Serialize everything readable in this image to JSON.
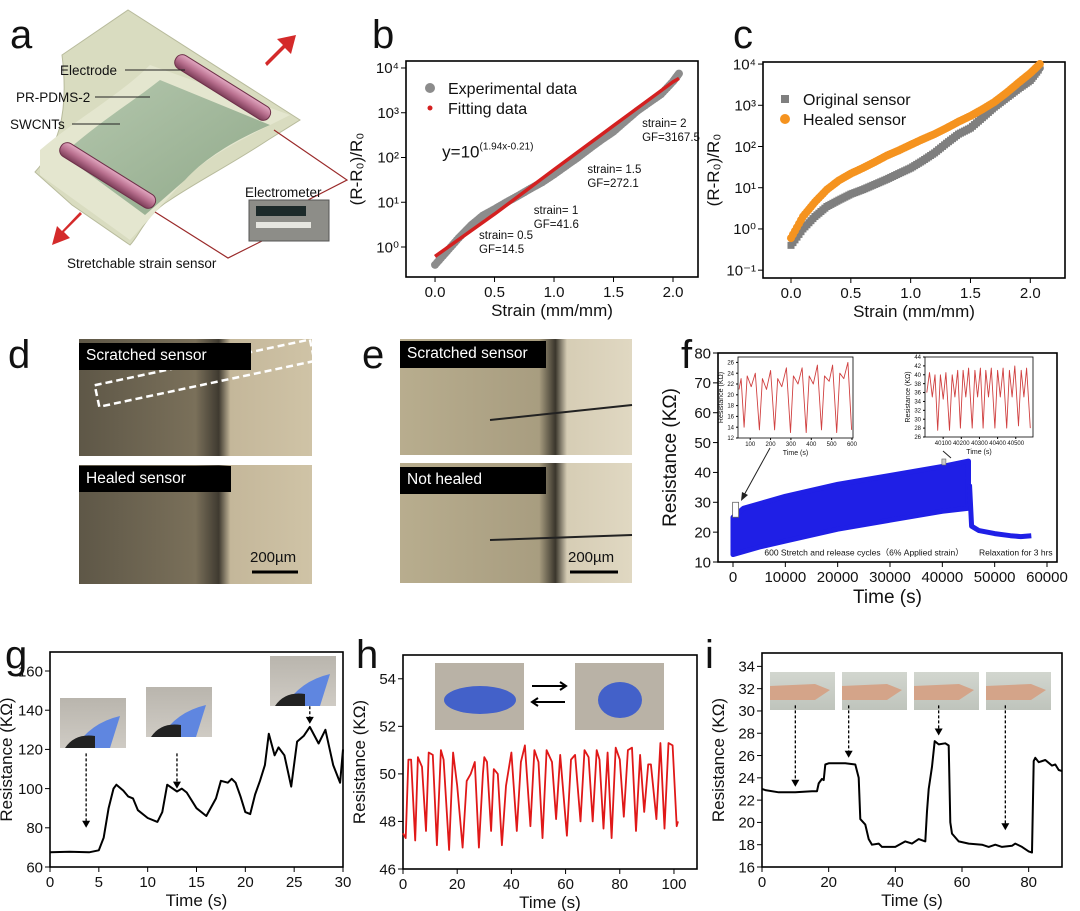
{
  "panel_letters": [
    "a",
    "b",
    "c",
    "d",
    "e",
    "f",
    "g",
    "h",
    "i"
  ],
  "panel_a": {
    "labels": {
      "electrode": "Electrode",
      "pr_pdms": "PR-PDMS-2",
      "swcnts": "SWCNTs",
      "electrometer": "Electrometer",
      "sensor": "Stretchable strain sensor"
    },
    "colors": {
      "substrate": "#d9dcc0",
      "film": "#9fb59a",
      "electrode": "#b9708f",
      "arrow": "#d42a2a",
      "wire": "#9a2a2a"
    }
  },
  "panel_d": {
    "top_label": "Scratched sensor",
    "bottom_label": "Healed sensor",
    "scale_bar": "200µm"
  },
  "panel_e": {
    "top_label": "Scratched sensor",
    "bottom_label": "Not healed",
    "scale_bar": "200µm"
  },
  "chart_data": [
    {
      "id": "b",
      "type": "scatter",
      "xlabel": "Strain (mm/mm)",
      "ylabel": "(R-R₀)/R₀",
      "xlim": [
        -0.244,
        2.21
      ],
      "ylim": [
        -0.67,
        4.156
      ],
      "yscale": "log",
      "xticks": [
        0.0,
        0.5,
        1.0,
        1.5,
        2.0
      ],
      "xtick_labels": [
        "0.0",
        "0.5",
        "1.0",
        "1.5",
        "2.0"
      ],
      "yticks": [
        0,
        1,
        2,
        3,
        4
      ],
      "ytick_labels": [
        "10⁰",
        "10¹",
        "10²",
        "10³",
        "10⁴"
      ],
      "legend_position": "top-left",
      "series": [
        {
          "name": "Experimental data",
          "color": "#8c8c8c",
          "marker": "circle",
          "x": [
            0,
            0.1,
            0.2,
            0.3,
            0.4,
            0.5,
            0.6,
            0.7,
            0.8,
            0.9,
            1.0,
            1.1,
            1.2,
            1.3,
            1.4,
            1.5,
            1.6,
            1.7,
            1.8,
            1.9,
            2.0,
            2.05
          ],
          "y": [
            0.4,
            0.8,
            1.6,
            3,
            5,
            7,
            10,
            14,
            20,
            28,
            42,
            65,
            100,
            160,
            250,
            380,
            650,
            1100,
            1700,
            2600,
            5000,
            7500
          ]
        },
        {
          "name": "Fitting data",
          "color": "#d42020",
          "marker": "line",
          "x": [
            0,
            0.5,
            1.0,
            1.5,
            2.0,
            2.05
          ],
          "y": [
            0.617,
            5.43,
            53.7,
            513,
            4898,
            5848
          ]
        }
      ],
      "annotations": [
        {
          "text": "y=10",
          "sup": "(1.94x-0.21)",
          "x": 0.06,
          "y": 100
        },
        {
          "text": "strain= 0.5",
          "text2": "GF=14.5",
          "x": 0.37,
          "y": 1.5
        },
        {
          "text": "strain= 1",
          "text2": "GF=41.6",
          "x": 0.83,
          "y": 5.5
        },
        {
          "text": "strain= 1.5",
          "text2": "GF=272.1",
          "x": 1.28,
          "y": 45
        },
        {
          "text": "strain= 2",
          "text2": "GF=3167.5",
          "x": 1.74,
          "y": 480
        }
      ]
    },
    {
      "id": "c",
      "type": "scatter",
      "xlabel": "Strain (mm/mm)",
      "ylabel": "(R-R₀)/R₀",
      "xlim": [
        -0.234,
        2.29
      ],
      "ylim": [
        -1.19,
        4.05
      ],
      "yscale": "log",
      "xticks": [
        0.0,
        0.5,
        1.0,
        1.5,
        2.0
      ],
      "xtick_labels": [
        "0.0",
        "0.5",
        "1.0",
        "1.5",
        "2.0"
      ],
      "yticks": [
        -1,
        0,
        1,
        2,
        3,
        4
      ],
      "ytick_labels": [
        "10⁻¹",
        "10⁰",
        "10¹",
        "10²",
        "10³",
        "10⁴"
      ],
      "legend_position": "top-left",
      "series": [
        {
          "name": "Original sensor",
          "color": "#7f7f7f",
          "marker": "square",
          "x": [
            0,
            0.1,
            0.2,
            0.3,
            0.4,
            0.5,
            0.6,
            0.7,
            0.8,
            0.9,
            1.0,
            1.1,
            1.2,
            1.3,
            1.4,
            1.5,
            1.6,
            1.7,
            1.8,
            1.9,
            2.0,
            2.08
          ],
          "y": [
            0.4,
            1,
            2,
            3.5,
            5,
            7,
            9,
            12,
            16,
            22,
            30,
            45,
            70,
            120,
            200,
            280,
            500,
            900,
            1500,
            2500,
            4000,
            8000
          ]
        },
        {
          "name": "Healed sensor",
          "color": "#f5931f",
          "marker": "circle",
          "x": [
            0,
            0.1,
            0.2,
            0.3,
            0.4,
            0.5,
            0.6,
            0.7,
            0.8,
            0.9,
            1.0,
            1.1,
            1.2,
            1.3,
            1.4,
            1.5,
            1.6,
            1.7,
            1.8,
            1.9,
            2.0,
            2.08
          ],
          "y": [
            0.6,
            2,
            4.5,
            9,
            15,
            22,
            30,
            42,
            60,
            80,
            110,
            150,
            200,
            280,
            400,
            550,
            800,
            1200,
            2000,
            3500,
            6000,
            10000
          ]
        }
      ]
    },
    {
      "id": "f",
      "type": "area",
      "xlabel": "Time (s)",
      "ylabel": "Resistance (KΩ)",
      "xlim": [
        -2866,
        61911
      ],
      "ylim": [
        10,
        80
      ],
      "xticks": [
        0,
        10000,
        20000,
        30000,
        40000,
        50000,
        60000
      ],
      "xtick_labels": [
        "0",
        "10000",
        "20000",
        "30000",
        "40000",
        "50000",
        "60000"
      ],
      "yticks": [
        10,
        20,
        30,
        40,
        50,
        60,
        70,
        80
      ],
      "ytick_labels": [
        "10",
        "20",
        "30",
        "40",
        "50",
        "60",
        "70",
        "80"
      ],
      "color": "#1f1fe6",
      "cycling_band": {
        "upper": {
          "x": [
            0,
            2000,
            10000,
            20000,
            30000,
            40000,
            45000
          ],
          "y": [
            25,
            28,
            32,
            36,
            39,
            42,
            43.8
          ]
        },
        "lower": {
          "x": [
            0,
            5000,
            10000,
            20000,
            30000,
            40000,
            45000
          ],
          "y": [
            12.5,
            15,
            17,
            21,
            24,
            27,
            28
          ]
        }
      },
      "relaxation": {
        "x": [
          45200,
          45600,
          47000,
          50000,
          53000,
          55000,
          57000
        ],
        "y": [
          36,
          22,
          20.5,
          19.5,
          18.8,
          18.5,
          18.8
        ]
      },
      "annotations": [
        {
          "text": "600 Stretch and release cycles（6% Applied strain）",
          "x": 6000,
          "y": 12.2
        },
        {
          "text": "Relaxation for 3 hrs",
          "x": 47000,
          "y": 12.2
        }
      ],
      "insets": [
        {
          "xlabel": "Time (s)",
          "ylabel": "Resistance (KΩ)",
          "xlim": [
            40,
            605
          ],
          "ylim": [
            12,
            27
          ],
          "xticks": [
            100,
            200,
            300,
            400,
            500,
            600
          ],
          "xtick_labels": [
            "100",
            "200",
            "300",
            "400",
            "500",
            "600"
          ],
          "yticks": [
            12,
            14,
            16,
            18,
            20,
            22,
            24,
            26
          ],
          "ytick_labels": [
            "12",
            "14",
            "16",
            "18",
            "20",
            "22",
            "24",
            "26"
          ],
          "color": "#d04040",
          "x": [
            45,
            55,
            70,
            85,
            105,
            125,
            145,
            160,
            180,
            200,
            220,
            235,
            255,
            278,
            298,
            312,
            335,
            355,
            375,
            390,
            410,
            430,
            450,
            465,
            488,
            505,
            525,
            540,
            560,
            580,
            598
          ],
          "y": [
            21,
            23,
            14,
            23.5,
            21.5,
            24,
            13.5,
            23,
            21,
            24.5,
            13.5,
            23,
            21.5,
            25,
            13,
            23.5,
            22,
            25,
            13,
            23.5,
            22,
            25.5,
            13.5,
            23.5,
            22.5,
            25.5,
            13,
            24,
            23,
            26,
            13.5
          ]
        },
        {
          "xlabel": "Time (s)",
          "ylabel": "Resistance (KΩ)",
          "xlim": [
            40000,
            40595
          ],
          "ylim": [
            26,
            44
          ],
          "xticks": [
            40100,
            40200,
            40300,
            40400,
            40500
          ],
          "xtick_labels": [
            "40100",
            "40200",
            "40300",
            "40400",
            "40500"
          ],
          "yticks": [
            26,
            28,
            30,
            32,
            34,
            36,
            38,
            40,
            42,
            44
          ],
          "ytick_labels": [
            "26",
            "28",
            "30",
            "32",
            "34",
            "36",
            "38",
            "40",
            "42",
            "44"
          ],
          "color": "#d04040",
          "x": [
            40010,
            40025,
            40040,
            40055,
            40070,
            40085,
            40100,
            40115,
            40135,
            40150,
            40165,
            40180,
            40195,
            40210,
            40225,
            40240,
            40260,
            40275,
            40290,
            40305,
            40320,
            40335,
            40350,
            40365,
            40385,
            40400,
            40415,
            40430,
            40450,
            40465,
            40480,
            40495,
            40515,
            40530,
            40545,
            40560,
            40580
          ],
          "y": [
            36,
            40.5,
            35,
            40,
            27.5,
            40,
            34.5,
            40.5,
            27.5,
            40,
            35,
            41,
            28,
            41,
            35,
            41.5,
            28,
            41,
            35,
            41.5,
            28,
            41,
            35,
            41.5,
            28,
            41,
            35,
            41.5,
            28,
            41,
            35,
            42,
            28.5,
            41,
            35,
            41.5,
            28
          ]
        }
      ]
    },
    {
      "id": "g",
      "type": "line",
      "xlabel": "Time (s)",
      "ylabel": "Resistance (KΩ)",
      "xlim": [
        0,
        30
      ],
      "ylim": [
        60,
        169.7
      ],
      "xticks": [
        0,
        5,
        10,
        15,
        20,
        25,
        30
      ],
      "xtick_labels": [
        "0",
        "5",
        "10",
        "15",
        "20",
        "25",
        "30"
      ],
      "yticks": [
        60,
        80,
        100,
        120,
        140,
        160
      ],
      "ytick_labels": [
        "60",
        "80",
        "100",
        "120",
        "140",
        "160"
      ],
      "color": "#000000",
      "x": [
        0,
        2,
        4,
        5,
        5.5,
        6,
        6.5,
        6.8,
        7.5,
        8,
        8.5,
        9,
        10,
        11,
        11.5,
        12,
        13,
        13.5,
        14,
        15,
        16,
        17,
        17.5,
        18.2,
        18.6,
        19,
        19.5,
        20,
        20.5,
        21,
        21.5,
        22,
        22.4,
        23,
        23.4,
        24,
        24.7,
        25.3,
        26,
        26.6,
        27.5,
        28.2,
        29,
        29.7,
        30
      ],
      "y": [
        67.5,
        67.8,
        67.5,
        68.5,
        75,
        90,
        100,
        102,
        99,
        96,
        95,
        89,
        85,
        83,
        88,
        102,
        98.5,
        100,
        98,
        90,
        86,
        95,
        104,
        103,
        105,
        103,
        96,
        88,
        87,
        97,
        104,
        112,
        128,
        117,
        121,
        117,
        101,
        124,
        127,
        131.5,
        123,
        130,
        112,
        103,
        120
      ],
      "arrows": [
        {
          "x": 3.7,
          "y_from": 118,
          "y_to": 80
        },
        {
          "x": 13,
          "y_from": 118,
          "y_to": 100
        },
        {
          "x": 26.6,
          "y_from": 142,
          "y_to": 133
        }
      ]
    },
    {
      "id": "h",
      "type": "line",
      "xlabel": "Time (s)",
      "ylabel": "Resistance (KΩ)",
      "xlim": [
        0,
        108.5
      ],
      "ylim": [
        46,
        55
      ],
      "xticks": [
        0,
        20,
        40,
        60,
        80,
        100
      ],
      "xtick_labels": [
        "0",
        "20",
        "40",
        "60",
        "80",
        "100"
      ],
      "yticks": [
        46,
        48,
        50,
        52,
        54
      ],
      "ytick_labels": [
        "46",
        "48",
        "50",
        "52",
        "54"
      ],
      "color": "#e01818",
      "x": [
        0,
        1,
        2,
        3,
        4.5,
        5.5,
        7,
        8.5,
        9.5,
        11,
        12.5,
        14,
        15,
        17,
        18.5,
        20,
        22,
        23.5,
        25,
        26.5,
        28,
        29.5,
        30,
        31,
        32.5,
        33.5,
        35,
        36.5,
        38,
        40,
        42,
        43.5,
        45,
        47,
        48.5,
        50,
        51.5,
        53,
        55,
        56.5,
        58,
        60.5,
        62,
        63.5,
        65.5,
        67,
        68.5,
        70,
        71.5,
        72.5,
        74,
        75.5,
        77,
        78.5,
        80,
        81.5,
        83,
        84.5,
        86,
        87.5,
        89,
        90.5,
        91.5,
        93.5,
        95,
        96.5,
        98,
        99.5,
        101,
        101.5
      ],
      "y": [
        47.5,
        47.3,
        50.6,
        50.6,
        47.2,
        50.7,
        50.3,
        47.6,
        50.9,
        50.8,
        47,
        51,
        50.6,
        46.8,
        50.9,
        49.5,
        46.9,
        49.7,
        50,
        50.5,
        46.9,
        50,
        50.7,
        50.5,
        47.6,
        50.2,
        50,
        47,
        49.5,
        50.9,
        47.6,
        50.5,
        51.2,
        47.8,
        51,
        50.5,
        47.3,
        51,
        50.5,
        48.1,
        50.8,
        47.4,
        50.6,
        50.8,
        48,
        51,
        50.7,
        48,
        51,
        50.6,
        47.7,
        50.9,
        47.3,
        51.1,
        50.6,
        48.2,
        51,
        51.1,
        47.6,
        50.8,
        48.4,
        50.4,
        50.4,
        48.1,
        51.3,
        47.7,
        51.3,
        51.2,
        47.8,
        48
      ]
    },
    {
      "id": "i",
      "type": "line",
      "xlabel": "Time (s)",
      "ylabel": "Resistance (KΩ)",
      "xlim": [
        0,
        90
      ],
      "ylim": [
        16,
        35.2
      ],
      "xticks": [
        0,
        20,
        40,
        60,
        80
      ],
      "xtick_labels": [
        "0",
        "20",
        "40",
        "60",
        "80"
      ],
      "yticks": [
        16,
        18,
        20,
        22,
        24,
        26,
        28,
        30,
        32,
        34
      ],
      "ytick_labels": [
        "16",
        "18",
        "20",
        "22",
        "24",
        "26",
        "28",
        "30",
        "32",
        "34"
      ],
      "color": "#000000",
      "x": [
        0,
        1,
        5,
        10,
        15,
        16.5,
        17,
        18,
        18.5,
        19,
        20,
        25,
        28,
        29,
        29.5,
        31,
        32,
        33,
        35,
        36,
        40,
        43,
        45,
        47,
        49,
        49.5,
        50,
        51,
        51.8,
        53,
        55,
        56,
        56.5,
        57,
        59,
        62,
        66,
        68,
        70,
        72,
        75,
        76,
        78,
        80,
        81,
        81.5,
        82,
        83,
        85,
        87,
        88,
        89,
        90
      ],
      "y": [
        23,
        22.9,
        22.7,
        22.7,
        22.8,
        22.8,
        23.5,
        23.9,
        23.8,
        25.2,
        25.3,
        25.3,
        25.2,
        24,
        20.3,
        19.8,
        18.5,
        18,
        18.1,
        17.8,
        17.8,
        18.3,
        18.1,
        18.5,
        18.3,
        21,
        23,
        25,
        27.3,
        27,
        27.1,
        26.9,
        20,
        19,
        18.3,
        18.1,
        18,
        17.8,
        18,
        17.8,
        17.9,
        18.1,
        17.8,
        17.4,
        17.3,
        25.5,
        25.8,
        25.4,
        25.6,
        25.1,
        25.2,
        24.7,
        24.6
      ],
      "arrows": [
        {
          "x": 10,
          "y_from": 30.5,
          "y_to": 23.2
        },
        {
          "x": 26,
          "y_from": 30.5,
          "y_to": 25.8
        },
        {
          "x": 53,
          "y_from": 30.5,
          "y_to": 27.8
        },
        {
          "x": 73,
          "y_from": 30.5,
          "y_to": 19.3
        }
      ]
    }
  ]
}
